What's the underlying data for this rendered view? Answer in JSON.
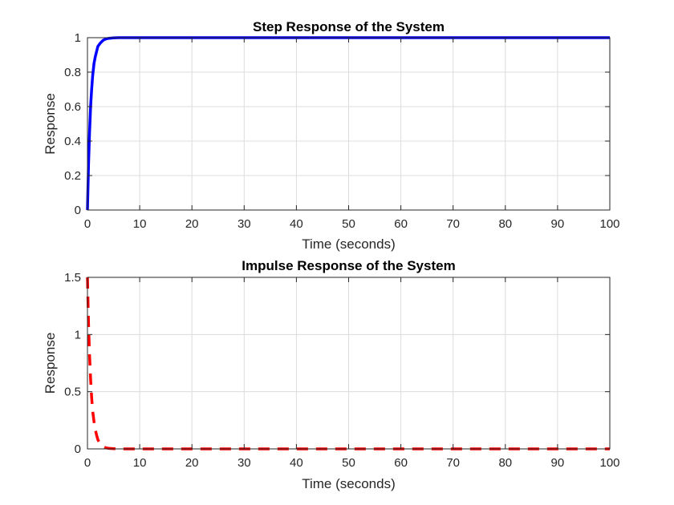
{
  "chart_data": [
    {
      "type": "line",
      "title": "Step Response of the System",
      "xlabel": "Time (seconds)",
      "ylabel": "Response",
      "xlim": [
        0,
        100
      ],
      "ylim": [
        0,
        1
      ],
      "xticks": [
        "0",
        "10",
        "20",
        "30",
        "40",
        "50",
        "60",
        "70",
        "80",
        "90",
        "100"
      ],
      "yticks": [
        "0",
        "0.2",
        "0.4",
        "0.6",
        "0.8",
        "1"
      ],
      "grid": true,
      "series": [
        {
          "color": "#0000ff",
          "style": "solid",
          "x": [
            0,
            0.2,
            0.4,
            0.6,
            0.8,
            1.0,
            1.25,
            1.5,
            1.75,
            2.0,
            2.5,
            3.0,
            3.5,
            4.0,
            5.0,
            6.0,
            8.0,
            10,
            20,
            30,
            40,
            50,
            60,
            70,
            80,
            90,
            100
          ],
          "y": [
            0,
            0.26,
            0.45,
            0.6,
            0.7,
            0.78,
            0.85,
            0.89,
            0.92,
            0.95,
            0.97,
            0.985,
            0.992,
            0.996,
            0.999,
            1.0,
            1.0,
            1.0,
            1.0,
            1.0,
            1.0,
            1.0,
            1.0,
            1.0,
            1.0,
            1.0,
            1.0
          ]
        }
      ]
    },
    {
      "type": "line",
      "title": "Impulse Response of the System",
      "xlabel": "Time (seconds)",
      "ylabel": "Response",
      "xlim": [
        0,
        100
      ],
      "ylim": [
        0,
        1.5
      ],
      "xticks": [
        "0",
        "10",
        "20",
        "30",
        "40",
        "50",
        "60",
        "70",
        "80",
        "90",
        "100"
      ],
      "yticks": [
        "0",
        "0.5",
        "1",
        "1.5"
      ],
      "grid": true,
      "series": [
        {
          "color": "#ff0000",
          "style": "dashed",
          "x": [
            0,
            0.2,
            0.4,
            0.6,
            0.8,
            1.0,
            1.25,
            1.5,
            1.75,
            2.0,
            2.5,
            3.0,
            3.5,
            4.0,
            5.0,
            6.0,
            8.0,
            10,
            20,
            30,
            40,
            50,
            60,
            70,
            80,
            90,
            100
          ],
          "y": [
            1.5,
            1.1,
            0.82,
            0.61,
            0.45,
            0.33,
            0.24,
            0.17,
            0.12,
            0.08,
            0.04,
            0.02,
            0.01,
            0.005,
            0.002,
            0.0,
            0.0,
            0.0,
            0.0,
            0.0,
            0.0,
            0.0,
            0.0,
            0.0,
            0.0,
            0.0,
            0.0
          ]
        }
      ]
    }
  ]
}
